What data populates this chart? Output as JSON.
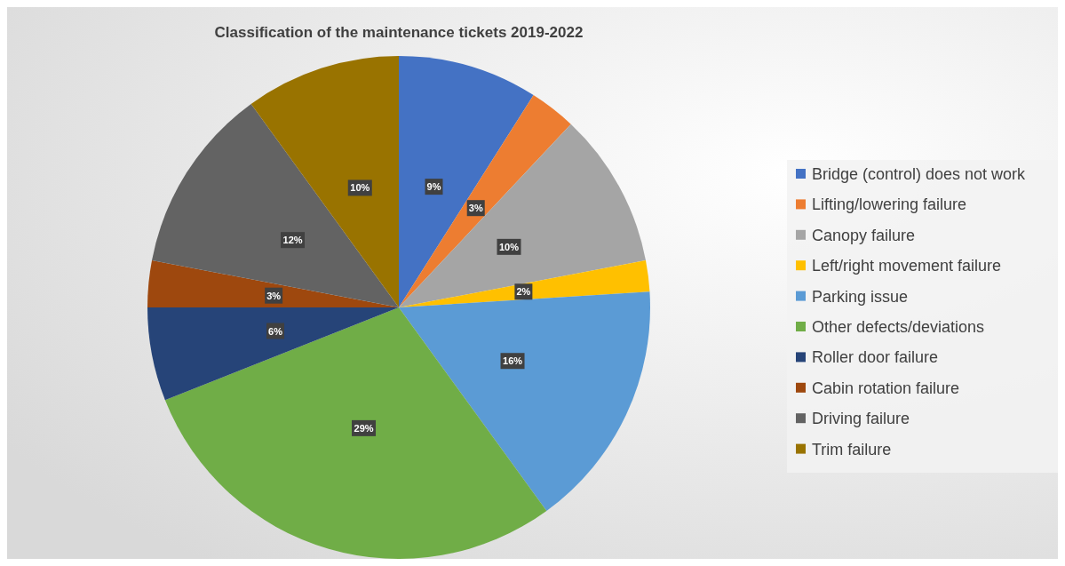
{
  "chart_data": {
    "type": "pie",
    "title": "Classification of the maintenance tickets 2019-2022",
    "categories": [
      "Bridge (control) does not work",
      "Lifting/lowering failure",
      "Canopy failure",
      "Left/right movement failure",
      "Parking issue",
      "Other defects/deviations",
      "Roller door failure",
      "Cabin rotation failure",
      "Driving failure",
      "Trim failure"
    ],
    "values": [
      9,
      3,
      10,
      2,
      16,
      29,
      6,
      3,
      12,
      10
    ],
    "colors": [
      "#4472c4",
      "#ed7d31",
      "#a5a5a5",
      "#ffc000",
      "#5b9bd5",
      "#70ad47",
      "#264478",
      "#9e480e",
      "#636363",
      "#997300"
    ],
    "value_labels": [
      "9%",
      "3%",
      "10%",
      "2%",
      "16%",
      "29%",
      "6%",
      "3%",
      "12%",
      "10%"
    ],
    "legend": "right"
  }
}
